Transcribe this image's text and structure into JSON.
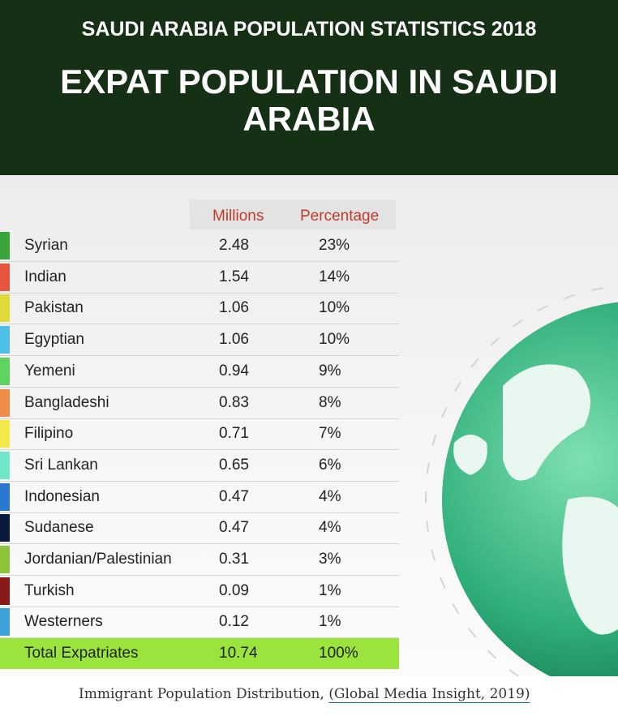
{
  "header": {
    "subtitle": "SAUDI ARABIA POPULATION STATISTICS 2018",
    "title": "EXPAT POPULATION IN SAUDI ARABIA"
  },
  "table": {
    "columns": [
      "Millions",
      "Percentage"
    ],
    "rows": [
      [
        "Syrian",
        "2.48",
        "23%"
      ],
      [
        "Indian",
        "1.54",
        "14%"
      ],
      [
        "Pakistan",
        "1.06",
        "10%"
      ],
      [
        "Egyptian",
        "1.06",
        "10%"
      ],
      [
        "Yemeni",
        "0.94",
        "9%"
      ],
      [
        "Bangladeshi",
        "0.83",
        "8%"
      ],
      [
        "Filipino",
        "0.71",
        "7%"
      ],
      [
        "Sri Lankan",
        "0.65",
        "6%"
      ],
      [
        "Indonesian",
        "0.47",
        "4%"
      ],
      [
        "Sudanese",
        "0.47",
        "4%"
      ],
      [
        "Jordanian/Palestinian",
        "0.31",
        "3%"
      ],
      [
        "Turkish",
        "0.09",
        "1%"
      ],
      [
        "Westerners",
        "0.12",
        "1%"
      ]
    ],
    "row_colors": [
      "#3aa53a",
      "#e8553e",
      "#e0d93a",
      "#4ec0e8",
      "#5fd35f",
      "#f08c4a",
      "#f2e84a",
      "#6ee8c8",
      "#2a78d0",
      "#0b1a3a",
      "#8cc43a",
      "#8a1a1a",
      "#3ea0d8"
    ],
    "total": [
      "Total Expatriates",
      "10.74",
      "100%"
    ]
  },
  "caption": {
    "text": "Immigrant Population Distribution, ",
    "link": "(Global Media Insight, 2019)"
  }
}
